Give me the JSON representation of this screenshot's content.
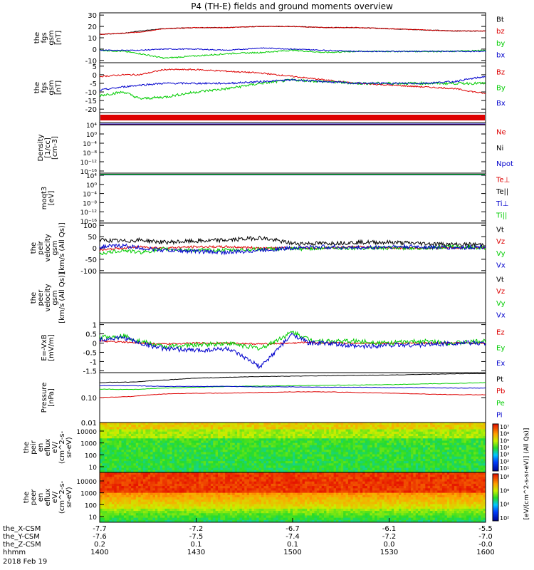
{
  "title": "P4 (TH-E) fields and ground moments overview",
  "footer": {
    "date": "2018 Feb 19",
    "row_labels": [
      "the_X-CSM",
      "the_Y-CSM",
      "the_Z-CSM",
      "hhmm"
    ],
    "rows": [
      [
        "-7.7",
        "-7.2",
        "-6.7",
        "-6.1",
        "-5.5"
      ],
      [
        "-7.6",
        "-7.5",
        "-7.4",
        "-7.2",
        "-7.0"
      ],
      [
        "0.2",
        "0.1",
        "0.1",
        "0.0",
        "-0.0"
      ],
      [
        "1400",
        "1430",
        "1500",
        "1530",
        "1600"
      ]
    ]
  },
  "colors": {
    "black": "#000000",
    "red": "#dd0000",
    "green": "#00cc00",
    "blue": "#0000cc"
  },
  "chart_data": [
    {
      "type": "line",
      "id": "fgs_csm",
      "ylabel": [
        "the",
        "fgs",
        "gsm",
        "[nT]"
      ],
      "yticks": [
        30,
        20,
        10,
        0,
        -10
      ],
      "ylim": [
        -12,
        32
      ],
      "x": [
        0,
        15,
        25,
        40,
        60,
        80,
        100,
        120,
        140,
        160,
        180,
        200,
        220,
        240
      ],
      "series": [
        {
          "name": "Bt",
          "color": "black",
          "values": [
            13,
            14,
            16,
            18,
            19,
            19,
            20,
            20,
            19,
            19,
            18,
            17,
            16,
            16
          ]
        },
        {
          "name": "bz",
          "color": "red",
          "values": [
            13,
            14,
            15,
            18,
            19,
            19,
            20,
            20,
            19,
            19,
            18,
            17,
            16,
            16
          ]
        },
        {
          "name": "by",
          "color": "green",
          "values": [
            -1,
            -2,
            -4,
            -8,
            -6,
            -4,
            -3,
            -1,
            -3,
            -2,
            -2,
            -2,
            -2,
            -1
          ]
        },
        {
          "name": "bx",
          "color": "blue",
          "values": [
            -1,
            -1,
            -1,
            0,
            0,
            -1,
            1,
            0,
            -1,
            -2,
            -2,
            -2,
            -2,
            -2
          ]
        }
      ]
    },
    {
      "type": "line",
      "id": "fgs_gsm",
      "ylabel": [
        "the",
        "fgs",
        "gsm",
        "[nT]"
      ],
      "yticks": [
        5,
        0,
        -5,
        -10,
        -15,
        -20
      ],
      "ylim": [
        -22,
        7
      ],
      "x": [
        0,
        15,
        25,
        40,
        60,
        80,
        100,
        120,
        140,
        160,
        180,
        200,
        220,
        240
      ],
      "series": [
        {
          "name": "Bz",
          "color": "red",
          "values": [
            -1,
            0,
            0,
            3,
            3,
            2,
            1,
            -1,
            -3,
            -5,
            -6,
            -7,
            -8,
            -11
          ]
        },
        {
          "name": "By",
          "color": "green",
          "values": [
            -12,
            -10,
            -14,
            -13,
            -10,
            -8,
            -5,
            -3,
            -4,
            -5,
            -5,
            -5,
            -5,
            -5
          ]
        },
        {
          "name": "Bx",
          "color": "blue",
          "values": [
            -9,
            -7,
            -6,
            -5,
            -5,
            -5,
            -4,
            -3,
            -4,
            -5,
            -5,
            -5,
            -4,
            -1
          ]
        }
      ]
    },
    {
      "type": "line",
      "id": "density",
      "ylabel": [
        "Density",
        "[1/cc]",
        "[cm-3]"
      ],
      "yticks": [
        "10⁴",
        "10⁰",
        "10⁻⁴",
        "10⁻⁸",
        "10⁻¹²",
        "10⁻¹⁶"
      ],
      "series": [
        {
          "name": "Ne",
          "color": "red"
        },
        {
          "name": "Ni",
          "color": "black"
        },
        {
          "name": "Npot",
          "color": "blue"
        }
      ]
    },
    {
      "type": "line",
      "id": "temperature",
      "ylabel": [
        "moqt3",
        "[eV]"
      ],
      "yticks": [
        "10⁴",
        "10⁰",
        "10⁻⁴",
        "10⁻⁸",
        "10⁻¹²",
        "10⁻¹⁶"
      ],
      "series": [
        {
          "name": "Te⊥",
          "color": "red"
        },
        {
          "name": "Te||",
          "color": "black"
        },
        {
          "name": "Ti⊥",
          "color": "blue"
        },
        {
          "name": "Ti||",
          "color": "green"
        }
      ]
    },
    {
      "type": "line",
      "id": "peir_velocity",
      "ylabel": [
        "the",
        "peir",
        "velocity",
        "gsm",
        "[km/s (All Qs)]"
      ],
      "yticks": [
        100,
        50,
        0,
        -50,
        -100
      ],
      "ylim": [
        -110,
        110
      ],
      "x": [
        0,
        15,
        25,
        40,
        60,
        80,
        100,
        120,
        140,
        160,
        180,
        200,
        220,
        240
      ],
      "series": [
        {
          "name": "Vt",
          "color": "black",
          "values": [
            35,
            30,
            35,
            25,
            30,
            35,
            45,
            20,
            20,
            25,
            25,
            20,
            15,
            15
          ]
        },
        {
          "name": "Vz",
          "color": "red",
          "values": [
            -10,
            0,
            5,
            0,
            5,
            5,
            0,
            0,
            0,
            5,
            0,
            0,
            0,
            0
          ]
        },
        {
          "name": "Vy",
          "color": "green",
          "values": [
            -25,
            -10,
            -20,
            -5,
            -10,
            -10,
            -5,
            -5,
            0,
            0,
            0,
            0,
            5,
            0
          ]
        },
        {
          "name": "Vx",
          "color": "blue",
          "values": [
            5,
            10,
            0,
            -10,
            -15,
            -20,
            -10,
            0,
            5,
            0,
            5,
            5,
            0,
            5
          ]
        }
      ]
    },
    {
      "type": "line",
      "id": "peer_velocity",
      "ylabel": [
        "the",
        "peer",
        "velocity",
        "gsm",
        "[km/s (All Qs)]"
      ],
      "yticks": [],
      "series": [
        {
          "name": "Vt",
          "color": "black"
        },
        {
          "name": "Vz",
          "color": "red"
        },
        {
          "name": "Vy",
          "color": "green"
        },
        {
          "name": "Vx",
          "color": "blue"
        }
      ]
    },
    {
      "type": "line",
      "id": "efield",
      "ylabel": [
        "E=-VxB",
        "[mV/m]"
      ],
      "yticks": [
        1.0,
        0.5,
        0.0,
        -0.5,
        -1.0,
        -1.5
      ],
      "ylim": [
        -1.6,
        1.1
      ],
      "x": [
        0,
        15,
        25,
        40,
        60,
        80,
        100,
        120,
        130,
        140,
        160,
        180,
        200,
        220,
        240
      ],
      "series": [
        {
          "name": "Ez",
          "color": "red",
          "values": [
            0.1,
            0.05,
            0.0,
            -0.05,
            0.0,
            0.0,
            -0.05,
            0.0,
            0.05,
            0.0,
            0.0,
            0.0,
            0.0,
            0.0,
            0.0
          ]
        },
        {
          "name": "Ey",
          "color": "green",
          "values": [
            0.3,
            0.4,
            0.1,
            -0.2,
            -0.1,
            0.0,
            -0.3,
            0.6,
            0.2,
            0.1,
            0.1,
            0.0,
            0.1,
            0.0,
            0.1
          ]
        },
        {
          "name": "Ex",
          "color": "blue",
          "values": [
            0.2,
            0.3,
            0.0,
            -0.3,
            -0.4,
            -0.3,
            -1.3,
            0.5,
            0.0,
            0.0,
            -0.2,
            -0.1,
            -0.1,
            0.0,
            0.0
          ]
        }
      ]
    },
    {
      "type": "line",
      "id": "pressure",
      "ylabel": [
        "Pressure",
        "[nPa]"
      ],
      "yticks": [
        "0.10",
        "0.01"
      ],
      "ylog": true,
      "ylim": [
        0.01,
        1.0
      ],
      "x": [
        0,
        20,
        40,
        60,
        80,
        100,
        120,
        140,
        160,
        180,
        200,
        220,
        240
      ],
      "series": [
        {
          "name": "Pt",
          "color": "black",
          "values": [
            0.4,
            0.42,
            0.5,
            0.6,
            0.65,
            0.7,
            0.72,
            0.75,
            0.78,
            0.8,
            0.85,
            0.9,
            0.92
          ]
        },
        {
          "name": "Pb",
          "color": "red",
          "values": [
            0.1,
            0.11,
            0.14,
            0.15,
            0.15,
            0.16,
            0.17,
            0.17,
            0.16,
            0.15,
            0.14,
            0.13,
            0.13
          ]
        },
        {
          "name": "Pe",
          "color": "green",
          "values": [
            0.22,
            0.21,
            0.24,
            0.26,
            0.28,
            0.29,
            0.3,
            0.31,
            0.32,
            0.33,
            0.35,
            0.37,
            0.4
          ]
        },
        {
          "name": "Pi",
          "color": "blue",
          "values": [
            0.3,
            0.3,
            0.28,
            0.28,
            0.28,
            0.27,
            0.27,
            0.26,
            0.26,
            0.25,
            0.25,
            0.24,
            0.24
          ]
        }
      ]
    },
    {
      "type": "heatmap",
      "id": "peir_eflux",
      "ylabel": [
        "the",
        "peir",
        "en",
        "eflux",
        "eV/",
        "(cm^2-s-",
        "sr-eV)"
      ],
      "yticks": [
        "10000",
        "1000",
        "100",
        "10"
      ]
    },
    {
      "type": "heatmap",
      "id": "peer_eflux",
      "ylabel": [
        "the",
        "peer",
        "en",
        "eflux",
        "eV/",
        "(cm^2-s-",
        "sr-eV)"
      ],
      "yticks": [
        "10000",
        "1000",
        "100",
        "10"
      ]
    }
  ],
  "colorbar": {
    "label": "[eV/(cm^2-s-sr-eV)] (All Qs)]",
    "ticks_top": [
      "10⁷",
      "10⁶",
      "10⁵",
      "10⁴",
      "10³",
      "10²",
      "10¹"
    ],
    "ticks_bottom": [
      "10⁸",
      "10⁶",
      "10⁴",
      "10²"
    ]
  }
}
